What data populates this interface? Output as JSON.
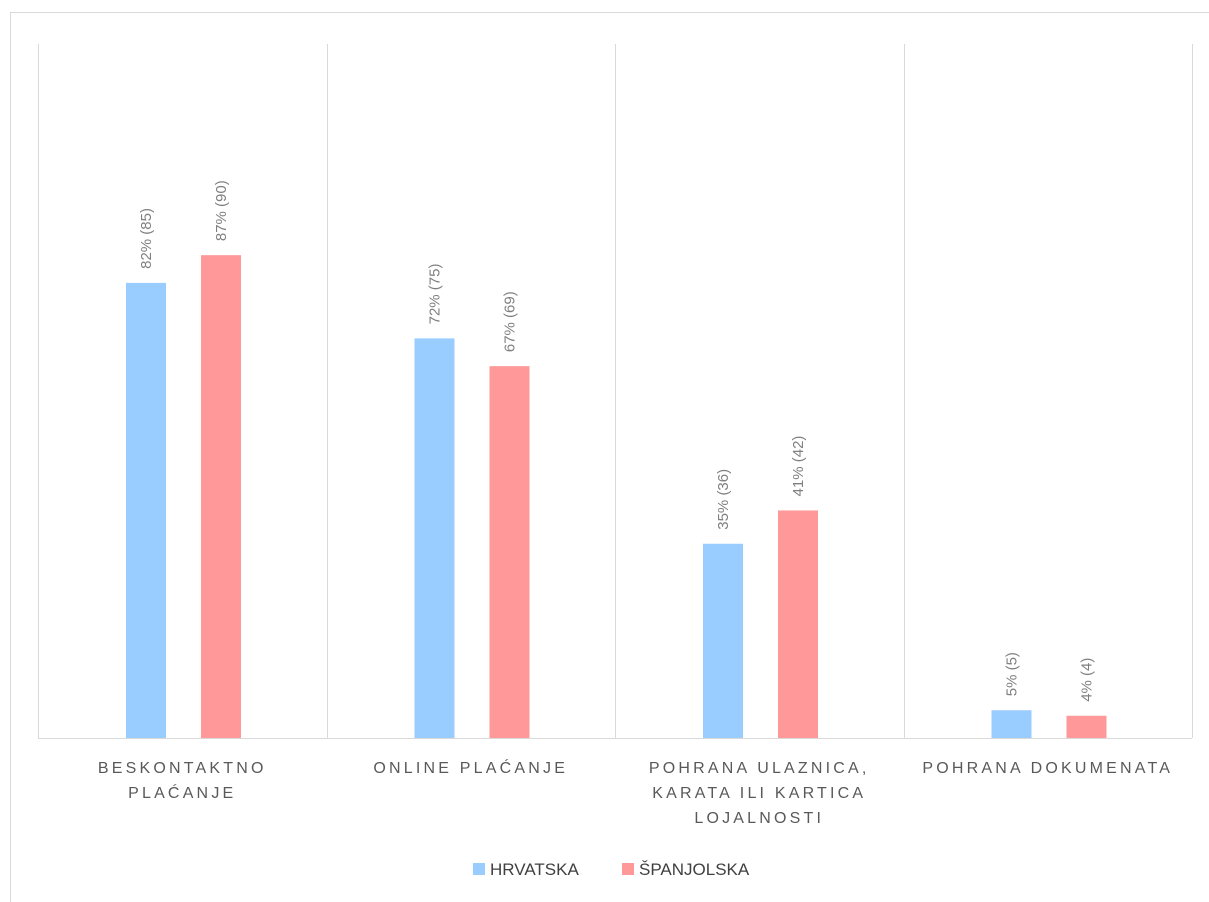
{
  "chart_data": {
    "type": "bar",
    "categories": [
      [
        "BESKONTAKTNO",
        "PLAĆANJE"
      ],
      [
        "ONLINE PLAĆANJE"
      ],
      [
        "POHRANA ULAZNICA,",
        "KARATA ILI KARTICA",
        "LOJALNOSTI"
      ],
      [
        "POHRANA DOKUMENATA"
      ]
    ],
    "series": [
      {
        "name": "HRVATSKA",
        "color": "#99ccff",
        "values": [
          82,
          72,
          35,
          5
        ],
        "labels": [
          "82% (85)",
          "72% (75)",
          "35% (36)",
          "5% (5)"
        ]
      },
      {
        "name": "ŠPANJOLSKA",
        "color": "#ff9999",
        "values": [
          87,
          67,
          41,
          4
        ],
        "labels": [
          "87% (90)",
          "67% (69)",
          "41% (42)",
          "4% (4)"
        ]
      }
    ],
    "ylim": [
      0,
      100
    ],
    "grid": "vertical category separators",
    "legend": "bottom-center",
    "title": "",
    "xlabel": "",
    "ylabel": ""
  }
}
